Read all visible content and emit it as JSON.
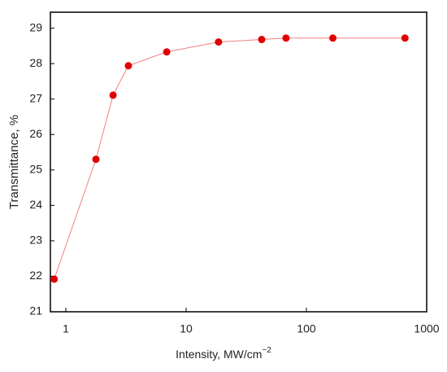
{
  "chart_data": {
    "type": "line",
    "xlabel": "Intensity, MW/cm",
    "xlabel_superscript": "−2",
    "ylabel": "Transmittance, %",
    "x": [
      0.8,
      1.78,
      2.47,
      3.31,
      6.9,
      18.6,
      42.5,
      67.7,
      166,
      660
    ],
    "series": [
      {
        "name": "Transmittance",
        "color": "#e00000",
        "line_color": "#f08080",
        "values": [
          21.92,
          25.3,
          27.11,
          27.94,
          28.33,
          28.61,
          28.68,
          28.72,
          28.72,
          28.72
        ]
      }
    ],
    "xlog": true,
    "xlim": [
      0.744,
      1000
    ],
    "xticks": [
      1,
      10,
      100,
      1000
    ],
    "ylim": [
      21,
      29.45
    ],
    "yticks": [
      21,
      22,
      23,
      24,
      25,
      26,
      27,
      28,
      29
    ]
  }
}
